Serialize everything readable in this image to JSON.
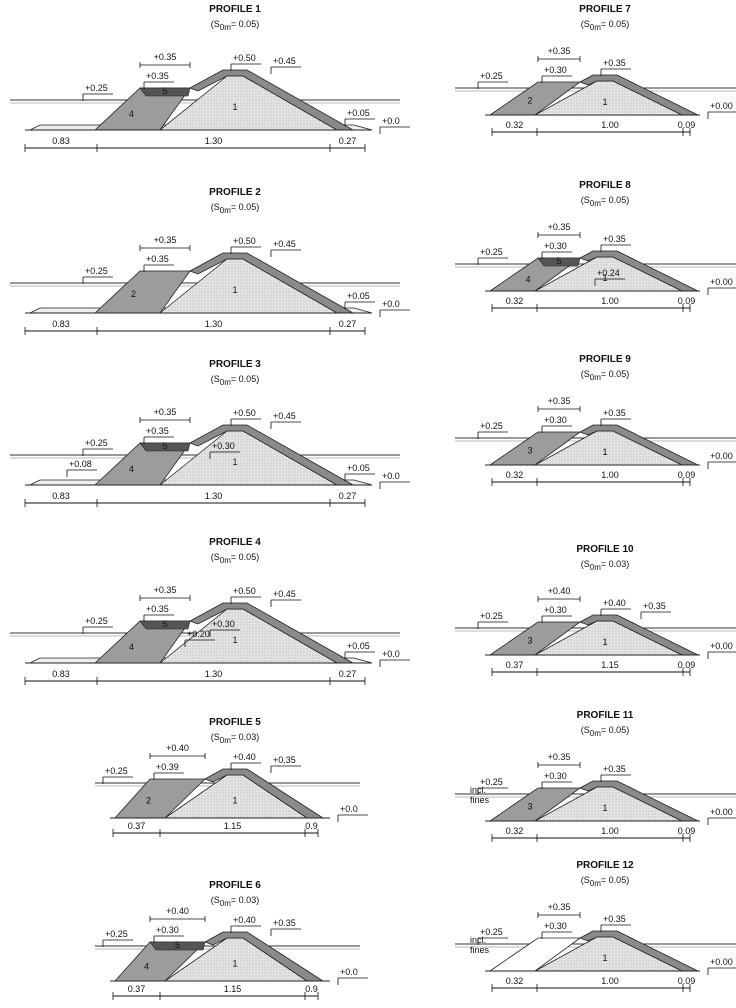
{
  "profiles": [
    {
      "title": "PROFILE 1",
      "steepness": {
        "prefix": "(S",
        "sub": "0m",
        "suffix": "= 0.05)"
      },
      "levels": [
        "+0.35",
        "+0.35",
        "+0.50",
        "+0.45",
        "+0.25",
        "+0.05",
        "+0.0"
      ],
      "zones": [
        "5",
        "4",
        "1"
      ],
      "dims": [
        "0.83",
        "1.30",
        "0.27"
      ]
    },
    {
      "title": "PROFILE 2",
      "steepness": {
        "prefix": "(S",
        "sub": "0m",
        "suffix": "= 0.05)"
      },
      "levels": [
        "+0.35",
        "+0.35",
        "+0.50",
        "+0.45",
        "+0.25",
        "+0.05",
        "+0.0"
      ],
      "zones": [
        "2",
        "1"
      ],
      "dims": [
        "0.83",
        "1.30",
        "0.27"
      ]
    },
    {
      "title": "PROFILE 3",
      "steepness": {
        "prefix": "(S",
        "sub": "0m",
        "suffix": "= 0.05)"
      },
      "levels": [
        "+0.35",
        "+0.35",
        "+0.50",
        "+0.45",
        "+0.25",
        "+0.08",
        "+0.30",
        "+0.05",
        "+0.0"
      ],
      "zones": [
        "5",
        "4",
        "1"
      ],
      "dims": [
        "0.83",
        "1.30",
        "0.27"
      ]
    },
    {
      "title": "PROFILE 4",
      "steepness": {
        "prefix": "(S",
        "sub": "0m",
        "suffix": "= 0.05)"
      },
      "levels": [
        "+0.35",
        "+0.35",
        "+0.50",
        "+0.45",
        "+0.25",
        "+0.30",
        "+0.20",
        "+0.05",
        "+0.0"
      ],
      "zones": [
        "5",
        "4",
        "1"
      ],
      "dims": [
        "0.83",
        "1.30",
        "0.27"
      ]
    },
    {
      "title": "PROFILE 5",
      "steepness": {
        "prefix": "(S",
        "sub": "0m",
        "suffix": "= 0.03)"
      },
      "levels": [
        "+0.40",
        "+0.39",
        "+0.40",
        "+0.35",
        "+0.25",
        "+0.0"
      ],
      "zones": [
        "2",
        "1"
      ],
      "dims": [
        "0.37",
        "1.15",
        "0.9"
      ]
    },
    {
      "title": "PROFILE 6",
      "steepness": {
        "prefix": "(S",
        "sub": "0m",
        "suffix": "= 0.03)"
      },
      "levels": [
        "+0.40",
        "+0.30",
        "+0.40",
        "+0.35",
        "+0.25",
        "+0.0"
      ],
      "zones": [
        "5",
        "4",
        "1"
      ],
      "dims": [
        "0.37",
        "1.15",
        "0.9"
      ]
    },
    {
      "title": "PROFILE 7",
      "steepness": {
        "prefix": "(S",
        "sub": "0m",
        "suffix": "= 0.05)"
      },
      "levels": [
        "+0.35",
        "+0.30",
        "+0.35",
        "+0.25",
        "+0.00"
      ],
      "zones": [
        "2",
        "1"
      ],
      "dims": [
        "0.32",
        "1.00",
        "0.09"
      ]
    },
    {
      "title": "PROFILE 8",
      "steepness": {
        "prefix": "(S",
        "sub": "0m",
        "suffix": "= 0.05)"
      },
      "levels": [
        "+0.35",
        "+0.30",
        "+0.35",
        "+0.25",
        "+0.24",
        "+0.00"
      ],
      "zones": [
        "5",
        "4",
        "1"
      ],
      "dims": [
        "0.32",
        "1.00",
        "0.09"
      ]
    },
    {
      "title": "PROFILE 9",
      "steepness": {
        "prefix": "(S",
        "sub": "0m",
        "suffix": "= 0.05)"
      },
      "levels": [
        "+0.35",
        "+0.30",
        "+0.35",
        "+0.25",
        "+0.00"
      ],
      "zones": [
        "3",
        "1"
      ],
      "dims": [
        "0.32",
        "1.00",
        "0.09"
      ]
    },
    {
      "title": "PROFILE 10",
      "steepness": {
        "prefix": "(S",
        "sub": "0m",
        "suffix": "= 0.03)"
      },
      "levels": [
        "+0.40",
        "+0.30",
        "+0.40",
        "+0.35",
        "+0.25",
        "+0.00"
      ],
      "zones": [
        "3",
        "1"
      ],
      "dims": [
        "0.37",
        "1.15",
        "0.09"
      ]
    },
    {
      "title": "PROFILE 11",
      "steepness": {
        "prefix": "(S",
        "sub": "0m",
        "suffix": "= 0.05)"
      },
      "levels": [
        "+0.35",
        "+0.30",
        "+0.35",
        "+0.25",
        "+0.00"
      ],
      "zones": [
        "3",
        "1"
      ],
      "note": [
        "incl.",
        "fines"
      ],
      "dims": [
        "0.32",
        "1.00",
        "0.09"
      ]
    },
    {
      "title": "PROFILE 12",
      "steepness": {
        "prefix": "(S",
        "sub": "0m",
        "suffix": "= 0.05)"
      },
      "levels": [
        "+0.35",
        "+0.30",
        "+0.35",
        "+0.25",
        "+0.00"
      ],
      "zones": [
        "1"
      ],
      "note": [
        "incl.",
        "fines"
      ],
      "dims": [
        "0.32",
        "1.00",
        "0.09"
      ]
    }
  ]
}
